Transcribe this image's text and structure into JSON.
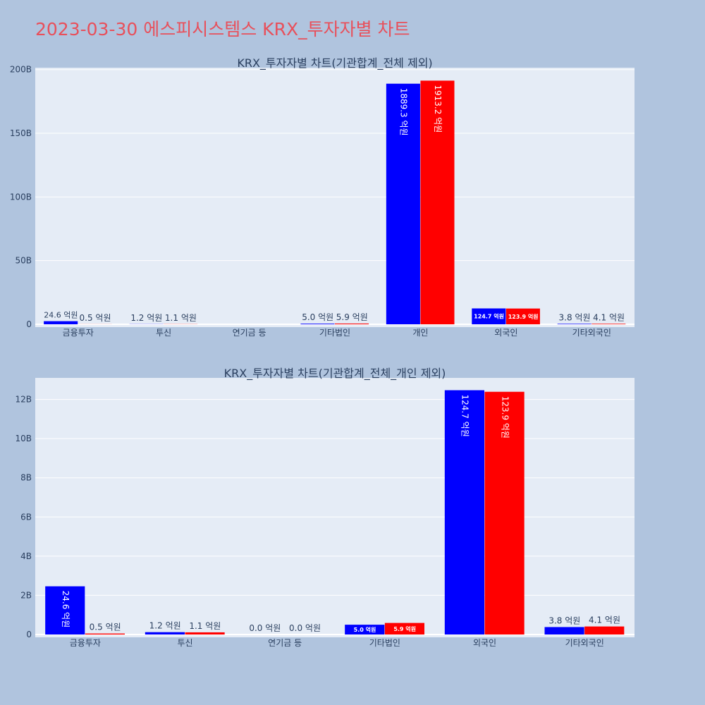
{
  "title": "2023-03-30 에스피시스템스 KRX_투자자별 차트",
  "colors": {
    "series_a": "#0000ff",
    "series_b": "#ff0000",
    "plot_bg": "#e5ecf6",
    "page_bg": "#b0c4de"
  },
  "chart_data": [
    {
      "type": "bar",
      "title": "KRX_투자자별 차트(기관합계_전체 제외)",
      "categories": [
        "금융투자",
        "투신",
        "연기금 등",
        "기타법인",
        "개인",
        "외국인",
        "기타외국인"
      ],
      "series": [
        {
          "values": [
            2.46,
            0.12,
            0.0,
            0.5,
            188.93,
            12.47,
            0.38
          ],
          "labels": [
            "24.6 억원",
            "1.2 억원",
            "",
            "5.0 억원",
            "1889.3 억원",
            "124.7 억원",
            "3.8 억원"
          ],
          "color": "#0000ff"
        },
        {
          "values": [
            0.05,
            0.11,
            0.0,
            0.59,
            191.32,
            12.39,
            0.41
          ],
          "labels": [
            "0.5 억원",
            "1.1 억원",
            "",
            "5.9 억원",
            "1913.2 억원",
            "123.9 억원",
            "4.1 억원"
          ],
          "color": "#ff0000"
        }
      ],
      "unit": "B",
      "yticks": [
        0,
        50,
        100,
        150,
        200
      ],
      "ytick_labels": [
        "0",
        "50B",
        "100B",
        "150B",
        "200B"
      ],
      "ylim": [
        0,
        201.5
      ],
      "grid": true
    },
    {
      "type": "bar",
      "title": "KRX_투자자별 차트(기관합계_전체_개인 제외)",
      "categories": [
        "금융투자",
        "투신",
        "연기금 등",
        "기타법인",
        "외국인",
        "기타외국인"
      ],
      "series": [
        {
          "values": [
            2.46,
            0.12,
            0.0,
            0.5,
            12.47,
            0.38
          ],
          "labels": [
            "24.6 억원",
            "1.2 억원",
            "0.0 억원",
            "5.0 억원",
            "124.7 억원",
            "3.8 억원"
          ],
          "color": "#0000ff"
        },
        {
          "values": [
            0.05,
            0.11,
            0.0,
            0.59,
            12.39,
            0.41
          ],
          "labels": [
            "0.5 억원",
            "1.1 억원",
            "0.0 억원",
            "5.9 억원",
            "123.9 억원",
            "4.1 억원"
          ],
          "color": "#ff0000"
        }
      ],
      "unit": "B",
      "yticks": [
        0,
        2,
        4,
        6,
        8,
        10,
        12
      ],
      "ytick_labels": [
        "0",
        "2B",
        "4B",
        "6B",
        "8B",
        "10B",
        "12B"
      ],
      "ylim": [
        0,
        13.1
      ],
      "grid": true
    }
  ]
}
